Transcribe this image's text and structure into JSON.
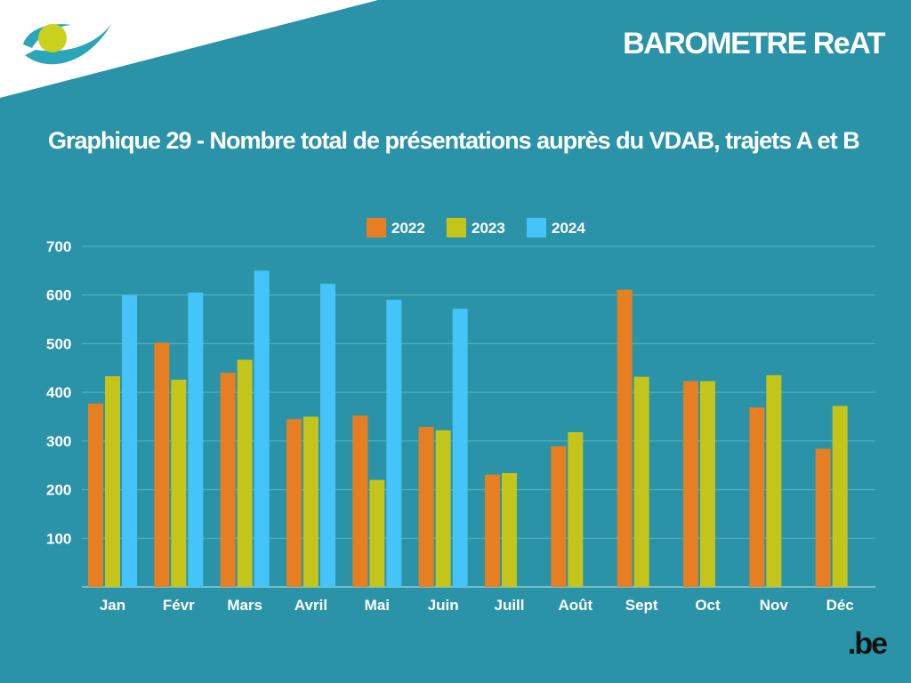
{
  "header": {
    "title": "BAROMETRE ReAT"
  },
  "footer": {
    "brand": ".be"
  },
  "colors": {
    "background": "#2a93a8",
    "series_2022": "#e87e22",
    "series_2023": "#c4c41b",
    "series_2024": "#44c4f8"
  },
  "chart_data": {
    "type": "bar",
    "title": "Graphique 29 - Nombre total de présentations auprès du VDAB, trajets A et B",
    "xlabel": "",
    "ylabel": "",
    "ylim": [
      0,
      700
    ],
    "yticks": [
      100,
      200,
      300,
      400,
      500,
      600,
      700
    ],
    "grid": true,
    "legend_position": "top",
    "categories": [
      "Jan",
      "Févr",
      "Mars",
      "Avril",
      "Mai",
      "Juin",
      "Juill",
      "Août",
      "Sept",
      "Oct",
      "Nov",
      "Déc"
    ],
    "series": [
      {
        "name": "2022",
        "color": "#e87e22",
        "values": [
          377,
          502,
          440,
          345,
          352,
          329,
          231,
          289,
          611,
          423,
          369,
          284
        ]
      },
      {
        "name": "2023",
        "color": "#c4c41b",
        "values": [
          433,
          426,
          467,
          350,
          220,
          322,
          234,
          318,
          432,
          423,
          435,
          372
        ]
      },
      {
        "name": "2024",
        "color": "#44c4f8",
        "values": [
          600,
          605,
          650,
          623,
          590,
          572,
          null,
          null,
          null,
          null,
          null,
          null
        ]
      }
    ]
  }
}
